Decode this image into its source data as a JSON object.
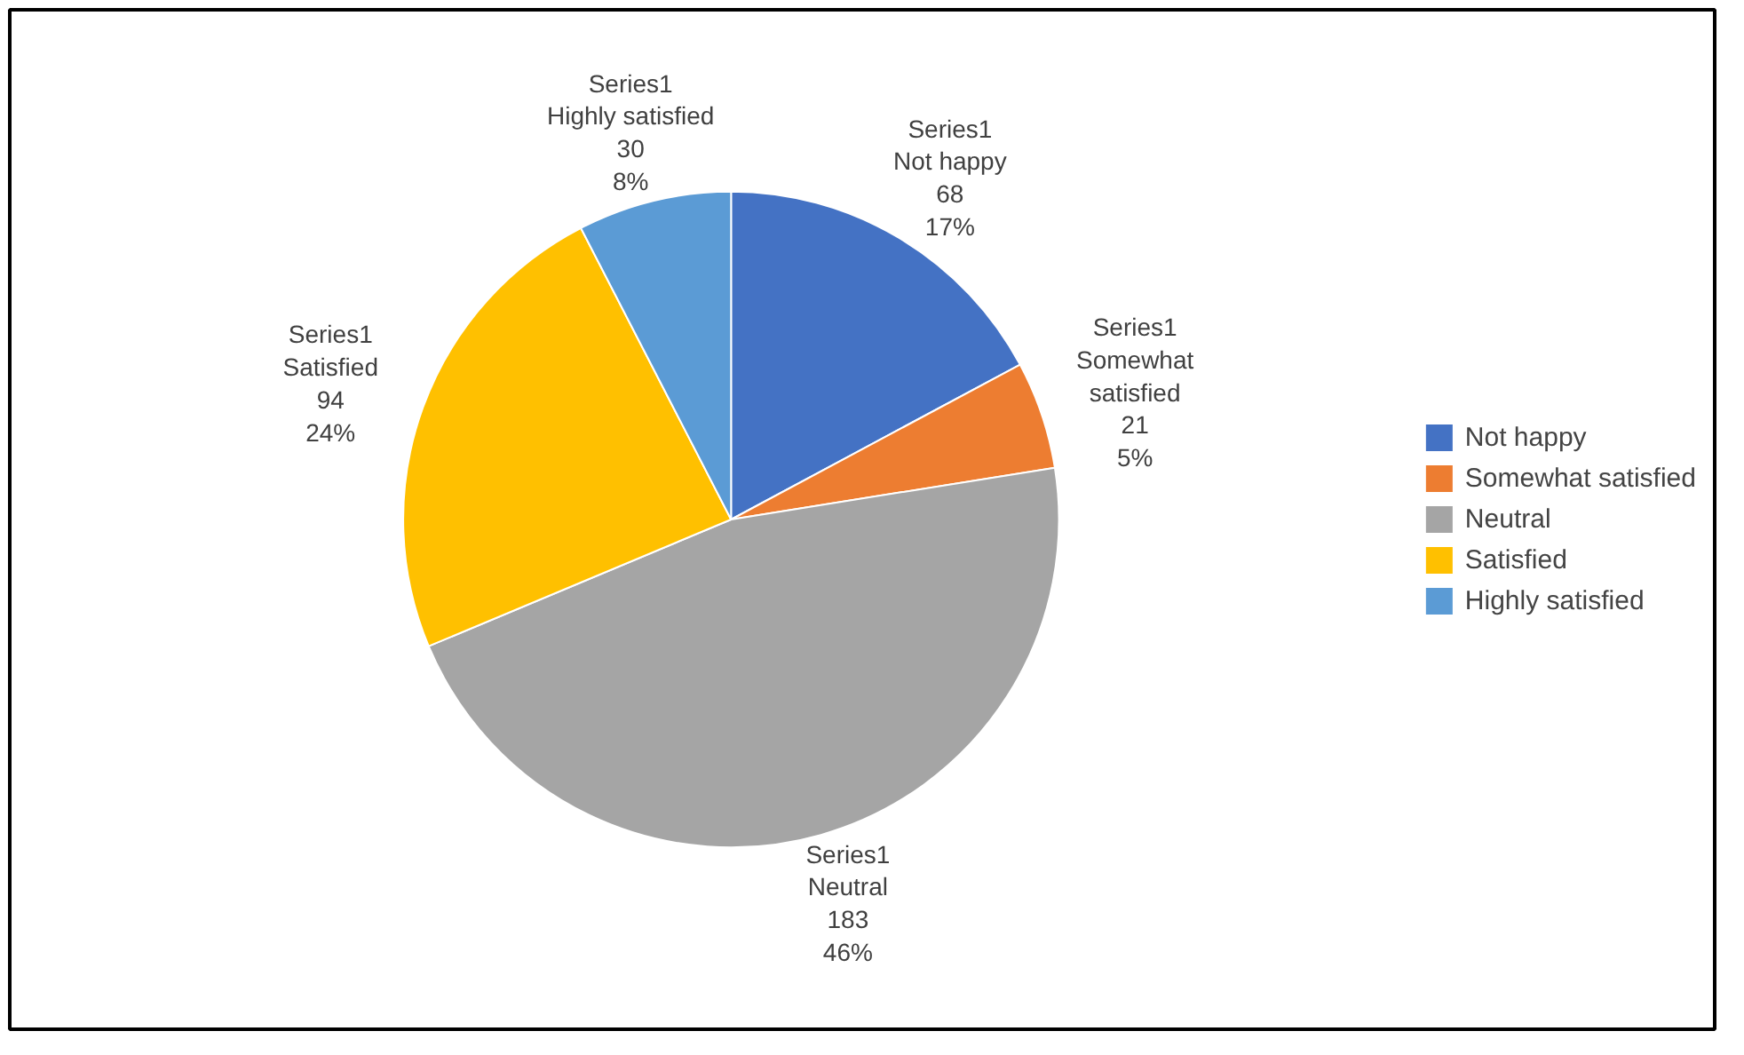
{
  "chart_data": {
    "type": "pie",
    "categories": [
      "Not happy",
      "Somewhat satisfied",
      "Neutral",
      "Satisfied",
      "Highly satisfied"
    ],
    "values": [
      68,
      21,
      183,
      94,
      30
    ],
    "colors": [
      "#4472c4",
      "#ed7d31",
      "#a5a5a5",
      "#ffc000",
      "#5b9bd5"
    ],
    "value_labels": [
      "Series1\nNot happy\n68\n17%",
      "Series1\nSomewhat\nsatisfied\n21\n5%",
      "Series1\nNeutral\n183\n46%",
      "Series1\nSatisfied\n94\n24%",
      "Series1\nHighly satisfied\n30\n8%"
    ],
    "legend": "right"
  }
}
